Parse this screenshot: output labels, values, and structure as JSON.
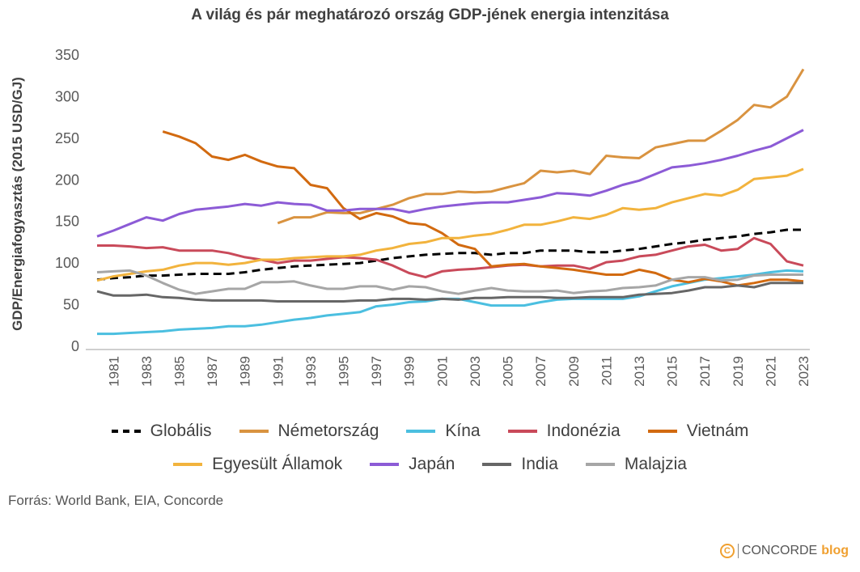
{
  "chart_data": {
    "type": "line",
    "title": "A világ és pár meghatározó ország GDP-jének energia intenzitása",
    "ylabel": "GDP/Energiafogyasztás (2015 USD/GJ)",
    "xlabel": "",
    "ylim": [
      0,
      350
    ],
    "yticks": [
      0,
      50,
      100,
      150,
      200,
      250,
      300,
      350
    ],
    "xlim": [
      1980,
      2023
    ],
    "xticks": [
      1981,
      1983,
      1985,
      1987,
      1989,
      1991,
      1993,
      1995,
      1997,
      1999,
      2001,
      2003,
      2005,
      2007,
      2009,
      2011,
      2013,
      2015,
      2017,
      2019,
      2021,
      2023
    ],
    "grid": false,
    "legend_position": "bottom",
    "series": [
      {
        "name": "Globális",
        "color": "#000000",
        "dashed": true,
        "start": 1980,
        "values": [
          80,
          82,
          83,
          85,
          85,
          86,
          87,
          87,
          87,
          89,
          92,
          94,
          96,
          97,
          98,
          99,
          100,
          103,
          106,
          108,
          110,
          111,
          112,
          112,
          110,
          112,
          112,
          115,
          115,
          115,
          113,
          113,
          115,
          117,
          120,
          123,
          125,
          128,
          130,
          132,
          135,
          137,
          140,
          140
        ]
      },
      {
        "name": "Németország",
        "color": "#D99340",
        "start": 1991,
        "values": [
          148,
          155,
          155,
          161,
          160,
          160,
          165,
          170,
          178,
          183,
          183,
          186,
          185,
          186,
          191,
          196,
          211,
          209,
          211,
          207,
          229,
          227,
          226,
          239,
          243,
          247,
          247,
          259,
          272,
          290,
          287,
          300,
          333
        ]
      },
      {
        "name": "Kína",
        "color": "#4BBFE0",
        "start": 1980,
        "values": [
          15,
          15,
          16,
          17,
          18,
          20,
          21,
          22,
          24,
          24,
          26,
          29,
          32,
          34,
          37,
          39,
          41,
          48,
          50,
          53,
          54,
          57,
          57,
          53,
          49,
          49,
          49,
          53,
          56,
          57,
          57,
          57,
          57,
          60,
          66,
          72,
          76,
          80,
          82,
          84,
          86,
          89,
          91,
          90
        ]
      },
      {
        "name": "Indonézia",
        "color": "#C94A5A",
        "start": 1980,
        "values": [
          121,
          121,
          120,
          118,
          119,
          115,
          115,
          115,
          112,
          107,
          104,
          100,
          103,
          103,
          105,
          107,
          106,
          104,
          97,
          88,
          83,
          90,
          92,
          93,
          95,
          97,
          98,
          96,
          97,
          97,
          93,
          101,
          103,
          108,
          110,
          115,
          120,
          122,
          115,
          117,
          130,
          123,
          102,
          97
        ]
      },
      {
        "name": "Vietnám",
        "color": "#D26A10",
        "start": 1984,
        "values": [
          258,
          252,
          244,
          228,
          224,
          230,
          222,
          216,
          214,
          194,
          190,
          166,
          153,
          160,
          156,
          148,
          146,
          136,
          122,
          117,
          96,
          98,
          99,
          96,
          94,
          92,
          89,
          86,
          86,
          92,
          88,
          80,
          77,
          81,
          78,
          73,
          76,
          80,
          80,
          78
        ]
      },
      {
        "name": "Egyesült Államok",
        "color": "#F2B33D",
        "start": 1980,
        "values": [
          79,
          84,
          87,
          90,
          92,
          97,
          100,
          100,
          98,
          100,
          104,
          104,
          106,
          107,
          108,
          108,
          110,
          115,
          118,
          123,
          125,
          130,
          130,
          133,
          135,
          140,
          146,
          146,
          150,
          155,
          153,
          158,
          166,
          164,
          166,
          173,
          178,
          183,
          181,
          188,
          201,
          203,
          205,
          213
        ]
      },
      {
        "name": "Japán",
        "color": "#8C5BD6",
        "start": 1980,
        "values": [
          132,
          139,
          147,
          155,
          151,
          159,
          164,
          166,
          168,
          171,
          169,
          173,
          171,
          170,
          163,
          163,
          165,
          165,
          165,
          161,
          165,
          168,
          170,
          172,
          173,
          173,
          176,
          179,
          184,
          183,
          181,
          187,
          194,
          199,
          207,
          215,
          217,
          220,
          224,
          229,
          235,
          240,
          250,
          260
        ]
      },
      {
        "name": "India",
        "color": "#666666",
        "start": 1980,
        "values": [
          66,
          61,
          61,
          62,
          59,
          58,
          56,
          55,
          55,
          55,
          55,
          54,
          54,
          54,
          54,
          54,
          55,
          55,
          57,
          57,
          56,
          57,
          56,
          58,
          58,
          59,
          59,
          59,
          58,
          58,
          59,
          59,
          59,
          62,
          63,
          64,
          67,
          71,
          71,
          73,
          71,
          76,
          76,
          76
        ]
      },
      {
        "name": "Malajzia",
        "color": "#A6A6A6",
        "start": 1980,
        "values": [
          89,
          90,
          91,
          85,
          76,
          68,
          63,
          66,
          69,
          69,
          77,
          77,
          78,
          73,
          69,
          69,
          72,
          72,
          68,
          72,
          71,
          66,
          63,
          67,
          70,
          67,
          66,
          66,
          67,
          64,
          66,
          67,
          70,
          71,
          73,
          80,
          83,
          83,
          79,
          80,
          85,
          86,
          86,
          86
        ]
      }
    ]
  },
  "source": "Forrás: World Bank, EIA, Concorde",
  "logo": {
    "brand": "CONCORDE",
    "suffix": "blog",
    "mark": "C"
  }
}
